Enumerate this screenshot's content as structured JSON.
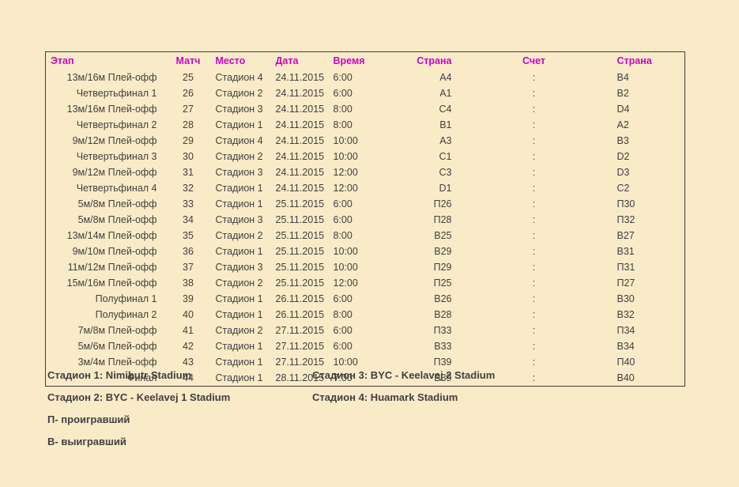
{
  "colors": {
    "page_background": "#FAEBC8",
    "header_text": "#CC00CC",
    "body_text": "#3F3F3F",
    "table_border": "#3F3F3F"
  },
  "table": {
    "columns": [
      {
        "key": "stage",
        "label": "Этап"
      },
      {
        "key": "match",
        "label": "Матч"
      },
      {
        "key": "venue",
        "label": "Место"
      },
      {
        "key": "date",
        "label": "Дата"
      },
      {
        "key": "time",
        "label": "Время"
      },
      {
        "key": "country1",
        "label": "Страна"
      },
      {
        "key": "score",
        "label": "Счет"
      },
      {
        "key": "country2",
        "label": "Страна"
      }
    ],
    "rows": [
      [
        "13м/16м Плей-офф",
        "25",
        "Стадион 4",
        "24.11.2015",
        "6:00",
        "A4",
        ":",
        "B4"
      ],
      [
        "Четвертьфинал 1",
        "26",
        "Стадион 2",
        "24.11.2015",
        "6:00",
        "A1",
        ":",
        "B2"
      ],
      [
        "13м/16м Плей-офф",
        "27",
        "Стадион 3",
        "24.11.2015",
        "8:00",
        "C4",
        ":",
        "D4"
      ],
      [
        "Четвертьфинал 2",
        "28",
        "Стадион 1",
        "24.11.2015",
        "8:00",
        "B1",
        ":",
        "A2"
      ],
      [
        "9м/12м Плей-офф",
        "29",
        "Стадион 4",
        "24.11.2015",
        "10:00",
        "A3",
        ":",
        "B3"
      ],
      [
        "Четвертьфинал 3",
        "30",
        "Стадион 2",
        "24.11.2015",
        "10:00",
        "C1",
        ":",
        "D2"
      ],
      [
        "9м/12м Плей-офф",
        "31",
        "Стадион 3",
        "24.11.2015",
        "12:00",
        "C3",
        ":",
        "D3"
      ],
      [
        "Четвертьфинал 4",
        "32",
        "Стадион 1",
        "24.11.2015",
        "12:00",
        "D1",
        ":",
        "C2"
      ],
      [
        "5м/8м Плей-офф",
        "33",
        "Стадион 1",
        "25.11.2015",
        "6:00",
        "П26",
        ":",
        "П30"
      ],
      [
        "5м/8м Плей-офф",
        "34",
        "Стадион 3",
        "25.11.2015",
        "6:00",
        "П28",
        ":",
        "П32"
      ],
      [
        "13м/14м Плей-офф",
        "35",
        "Стадион 2",
        "25.11.2015",
        "8:00",
        "В25",
        ":",
        "В27"
      ],
      [
        "9м/10м Плей-офф",
        "36",
        "Стадион 1",
        "25.11.2015",
        "10:00",
        "В29",
        ":",
        "В31"
      ],
      [
        "11м/12м Плей-офф",
        "37",
        "Стадион 3",
        "25.11.2015",
        "10:00",
        "П29",
        ":",
        "П31"
      ],
      [
        "15м/16м Плей-офф",
        "38",
        "Стадион 2",
        "25.11.2015",
        "12:00",
        "П25",
        ":",
        "П27"
      ],
      [
        "Полуфинал 1",
        "39",
        "Стадион 1",
        "26.11.2015",
        "6:00",
        "В26",
        ":",
        "В30"
      ],
      [
        "Полуфинал 2",
        "40",
        "Стадион 1",
        "26.11.2015",
        "8:00",
        "В28",
        ":",
        "В32"
      ],
      [
        "7м/8м Плей-офф",
        "41",
        "Стадион 2",
        "27.11.2015",
        "6:00",
        "П33",
        ":",
        "П34"
      ],
      [
        "5м/6м Плей-офф",
        "42",
        "Стадион 1",
        "27.11.2015",
        "6:00",
        "В33",
        ":",
        "В34"
      ],
      [
        "3м/4м Плей-офф",
        "43",
        "Стадион 1",
        "27.11.2015",
        "10:00",
        "П39",
        ":",
        "П40"
      ],
      [
        "Финал",
        "44",
        "Стадион 1",
        "28.11.2015",
        "7:00",
        "В39",
        ":",
        "В40"
      ]
    ]
  },
  "legend": {
    "stadium1": "Стадион 1: Nimibutr Stadium",
    "stadium2": "Стадион 2: BYC - Keelavej 1 Stadium",
    "stadium3": "Стадион 3: BYC - Keelavej 2 Stadium",
    "stadium4": "Стадион 4: Huamark Stadium",
    "note_loser": "П- проигравший",
    "note_winner": "В- выигравший"
  }
}
